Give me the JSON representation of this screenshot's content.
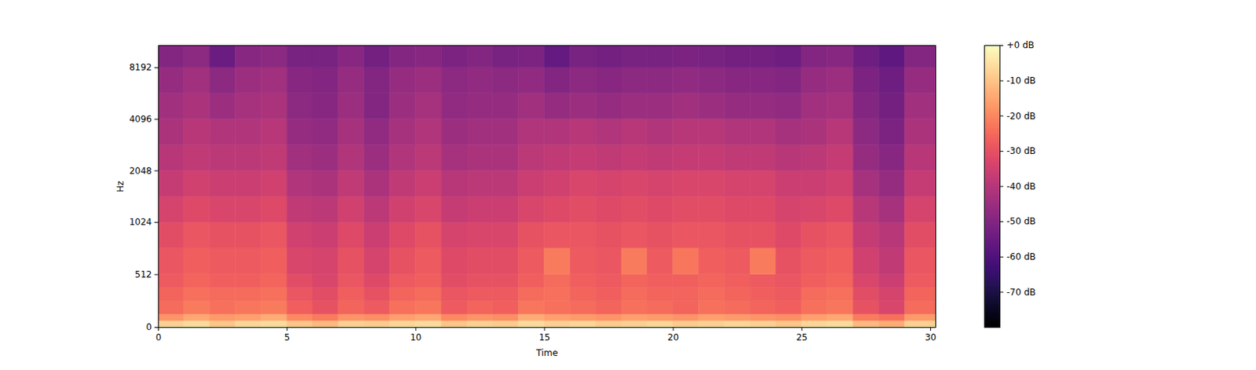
{
  "chart_data": {
    "type": "heatmap",
    "x_label": "Time",
    "y_label": "Hz",
    "xlim": [
      0,
      30.2
    ],
    "xticks": [
      0,
      5,
      10,
      15,
      20,
      25,
      30
    ],
    "ylim": [
      0,
      11025
    ],
    "yticks": [
      0,
      512,
      1024,
      2048,
      4096,
      8192
    ],
    "time_edges": [
      0,
      1,
      2,
      3,
      4,
      5,
      6,
      7,
      8,
      9,
      10,
      11,
      12,
      13,
      14,
      15,
      16,
      17,
      18,
      19,
      20,
      21,
      22,
      23,
      24,
      25,
      26,
      27,
      28,
      29,
      30.2
    ],
    "freq_edges": [
      0,
      64,
      128,
      256,
      384,
      512,
      768,
      1024,
      1448,
      2048,
      2896,
      4096,
      5793,
      8192,
      11025
    ],
    "cells": [
      [
        -8,
        -6,
        -10,
        -7,
        -6,
        -10,
        -12,
        -8,
        -9,
        -7,
        -6,
        -10,
        -8,
        -9,
        -6,
        -8,
        -7,
        -9,
        -8,
        -7,
        -9,
        -8,
        -7,
        -8,
        -10,
        -7,
        -6,
        -12,
        -14,
        -8
      ],
      [
        -18,
        -15,
        -17,
        -16,
        -14,
        -20,
        -22,
        -18,
        -19,
        -16,
        -15,
        -20,
        -18,
        -19,
        -14,
        -16,
        -17,
        -18,
        -16,
        -17,
        -18,
        -16,
        -17,
        -18,
        -19,
        -16,
        -15,
        -22,
        -24,
        -17
      ],
      [
        -25,
        -22,
        -24,
        -23,
        -22,
        -27,
        -30,
        -26,
        -28,
        -24,
        -23,
        -28,
        -26,
        -27,
        -23,
        -24,
        -25,
        -26,
        -24,
        -25,
        -26,
        -24,
        -25,
        -26,
        -27,
        -24,
        -23,
        -30,
        -33,
        -25
      ],
      [
        -26,
        -24,
        -25,
        -25,
        -24,
        -29,
        -31,
        -27,
        -30,
        -26,
        -25,
        -29,
        -28,
        -28,
        -25,
        -24,
        -26,
        -27,
        -25,
        -26,
        -26,
        -25,
        -26,
        -27,
        -28,
        -25,
        -24,
        -31,
        -34,
        -26
      ],
      [
        -28,
        -26,
        -27,
        -27,
        -26,
        -31,
        -33,
        -29,
        -32,
        -28,
        -27,
        -31,
        -30,
        -30,
        -27,
        -25,
        -27,
        -28,
        -26,
        -27,
        -27,
        -26,
        -27,
        -28,
        -29,
        -27,
        -26,
        -33,
        -36,
        -28
      ],
      [
        -29,
        -27,
        -28,
        -28,
        -27,
        -33,
        -34,
        -30,
        -34,
        -30,
        -28,
        -32,
        -31,
        -31,
        -28,
        -22,
        -28,
        -29,
        -22,
        -28,
        -23,
        -27,
        -28,
        -22,
        -30,
        -28,
        -27,
        -35,
        -38,
        -29
      ],
      [
        -31,
        -29,
        -30,
        -30,
        -29,
        -35,
        -36,
        -32,
        -36,
        -32,
        -30,
        -34,
        -33,
        -33,
        -30,
        -29,
        -29,
        -30,
        -29,
        -30,
        -29,
        -29,
        -30,
        -30,
        -32,
        -30,
        -29,
        -37,
        -40,
        -31
      ],
      [
        -34,
        -32,
        -33,
        -33,
        -32,
        -38,
        -39,
        -35,
        -39,
        -35,
        -33,
        -37,
        -36,
        -36,
        -33,
        -32,
        -31,
        -32,
        -31,
        -32,
        -31,
        -31,
        -32,
        -32,
        -34,
        -33,
        -32,
        -40,
        -43,
        -34
      ],
      [
        -37,
        -35,
        -36,
        -36,
        -35,
        -41,
        -42,
        -38,
        -42,
        -38,
        -36,
        -40,
        -39,
        -39,
        -36,
        -35,
        -33,
        -34,
        -33,
        -34,
        -33,
        -33,
        -34,
        -34,
        -36,
        -36,
        -35,
        -43,
        -46,
        -37
      ],
      [
        -40,
        -38,
        -39,
        -39,
        -38,
        -44,
        -45,
        -41,
        -45,
        -41,
        -39,
        -43,
        -42,
        -42,
        -39,
        -38,
        -37,
        -38,
        -37,
        -38,
        -37,
        -37,
        -38,
        -38,
        -40,
        -39,
        -37,
        -46,
        -49,
        -40
      ],
      [
        -42,
        -40,
        -41,
        -41,
        -40,
        -46,
        -47,
        -43,
        -47,
        -43,
        -41,
        -45,
        -44,
        -44,
        -41,
        -41,
        -40,
        -41,
        -40,
        -41,
        -40,
        -40,
        -41,
        -41,
        -43,
        -42,
        -40,
        -48,
        -51,
        -42
      ],
      [
        -44,
        -42,
        -45,
        -43,
        -42,
        -48,
        -49,
        -45,
        -50,
        -45,
        -43,
        -47,
        -46,
        -46,
        -44,
        -46,
        -45,
        -46,
        -45,
        -45,
        -44,
        -45,
        -46,
        -46,
        -47,
        -44,
        -43,
        -50,
        -53,
        -44
      ],
      [
        -46,
        -44,
        -48,
        -45,
        -44,
        -49,
        -50,
        -46,
        -50,
        -46,
        -45,
        -48,
        -47,
        -48,
        -47,
        -50,
        -48,
        -49,
        -48,
        -48,
        -47,
        -48,
        -49,
        -49,
        -50,
        -46,
        -45,
        -51,
        -54,
        -46
      ],
      [
        -50,
        -48,
        -55,
        -49,
        -48,
        -52,
        -52,
        -49,
        -53,
        -50,
        -49,
        -51,
        -50,
        -52,
        -51,
        -56,
        -52,
        -53,
        -52,
        -52,
        -51,
        -52,
        -53,
        -53,
        -54,
        -50,
        -49,
        -54,
        -57,
        -50
      ]
    ],
    "color_range": [
      -80,
      0
    ],
    "color_ticks": [
      {
        "value": 0,
        "label": "+0 dB"
      },
      {
        "value": -10,
        "label": "-10 dB"
      },
      {
        "value": -20,
        "label": "-20 dB"
      },
      {
        "value": -30,
        "label": "-30 dB"
      },
      {
        "value": -40,
        "label": "-40 dB"
      },
      {
        "value": -50,
        "label": "-50 dB"
      },
      {
        "value": -60,
        "label": "-60 dB"
      },
      {
        "value": -70,
        "label": "-70 dB"
      }
    ]
  }
}
